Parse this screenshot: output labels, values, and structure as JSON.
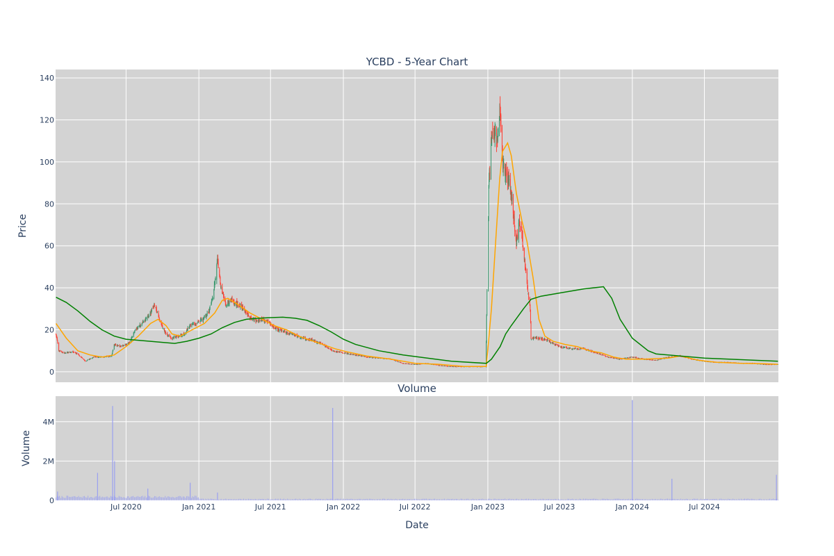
{
  "chart_data": [
    {
      "type": "candlestick",
      "title": "YCBD - 5-Year Chart",
      "ylabel": "Price",
      "ylim": [
        -5,
        144
      ],
      "yticks": [
        0,
        20,
        40,
        60,
        80,
        100,
        120,
        140
      ],
      "colors": {
        "up": "#3d9970",
        "down": "#ff4136",
        "ma_short": "#ffa500",
        "ma_long": "#008000"
      },
      "price_path": [
        [
          "2020-01-06",
          18
        ],
        [
          "2020-01-13",
          10
        ],
        [
          "2020-01-27",
          9
        ],
        [
          "2020-02-15",
          9.5
        ],
        [
          "2020-03-01",
          8.5
        ],
        [
          "2020-03-20",
          5
        ],
        [
          "2020-04-10",
          7
        ],
        [
          "2020-05-05",
          7
        ],
        [
          "2020-05-25",
          7.5
        ],
        [
          "2020-06-01",
          13
        ],
        [
          "2020-06-20",
          12
        ],
        [
          "2020-07-10",
          14
        ],
        [
          "2020-07-25",
          20
        ],
        [
          "2020-08-15",
          24
        ],
        [
          "2020-09-01",
          28
        ],
        [
          "2020-09-10",
          32
        ],
        [
          "2020-09-25",
          24
        ],
        [
          "2020-10-10",
          18
        ],
        [
          "2020-10-25",
          16
        ],
        [
          "2020-11-10",
          17
        ],
        [
          "2020-11-25",
          18
        ],
        [
          "2020-12-10",
          22
        ],
        [
          "2020-12-25",
          23
        ],
        [
          "2021-01-10",
          25
        ],
        [
          "2021-01-25",
          28
        ],
        [
          "2021-02-05",
          35
        ],
        [
          "2021-02-12",
          45
        ],
        [
          "2021-02-17",
          54
        ],
        [
          "2021-02-25",
          40
        ],
        [
          "2021-03-10",
          32
        ],
        [
          "2021-03-25",
          34
        ],
        [
          "2021-04-10",
          32
        ],
        [
          "2021-04-25",
          30
        ],
        [
          "2021-05-10",
          26
        ],
        [
          "2021-05-25",
          24
        ],
        [
          "2021-06-10",
          25
        ],
        [
          "2021-06-25",
          24
        ],
        [
          "2021-07-10",
          21
        ],
        [
          "2021-08-01",
          19
        ],
        [
          "2021-08-25",
          18
        ],
        [
          "2021-09-20",
          16
        ],
        [
          "2021-10-15",
          15
        ],
        [
          "2021-11-10",
          13
        ],
        [
          "2021-12-05",
          10
        ],
        [
          "2022-01-01",
          9
        ],
        [
          "2022-02-01",
          8
        ],
        [
          "2022-03-01",
          7
        ],
        [
          "2022-04-01",
          6.5
        ],
        [
          "2022-05-01",
          6
        ],
        [
          "2022-06-01",
          4
        ],
        [
          "2022-07-01",
          3.5
        ],
        [
          "2022-08-01",
          4
        ],
        [
          "2022-09-01",
          3
        ],
        [
          "2022-10-01",
          2.5
        ],
        [
          "2022-11-01",
          2.5
        ],
        [
          "2022-12-01",
          2.5
        ],
        [
          "2022-12-27",
          2.5
        ],
        [
          "2023-01-03",
          88
        ],
        [
          "2023-01-10",
          110
        ],
        [
          "2023-01-17",
          115
        ],
        [
          "2023-01-24",
          108
        ],
        [
          "2023-01-31",
          125
        ],
        [
          "2023-02-07",
          100
        ],
        [
          "2023-02-14",
          95
        ],
        [
          "2023-02-21",
          92
        ],
        [
          "2023-02-28",
          85
        ],
        [
          "2023-03-07",
          75
        ],
        [
          "2023-03-14",
          60
        ],
        [
          "2023-03-21",
          72
        ],
        [
          "2023-03-28",
          65
        ],
        [
          "2023-04-04",
          52
        ],
        [
          "2023-04-11",
          40
        ],
        [
          "2023-04-18",
          30
        ],
        [
          "2023-04-20",
          16
        ],
        [
          "2023-05-10",
          16
        ],
        [
          "2023-06-01",
          15
        ],
        [
          "2023-07-01",
          12
        ],
        [
          "2023-08-01",
          11
        ],
        [
          "2023-09-01",
          11
        ],
        [
          "2023-10-01",
          9
        ],
        [
          "2023-11-01",
          7
        ],
        [
          "2023-12-01",
          6
        ],
        [
          "2024-01-01",
          7
        ],
        [
          "2024-02-01",
          6
        ],
        [
          "2024-03-01",
          5.5
        ],
        [
          "2024-04-01",
          7
        ],
        [
          "2024-05-01",
          7.5
        ],
        [
          "2024-06-01",
          6
        ],
        [
          "2024-07-01",
          5
        ],
        [
          "2024-08-01",
          4.5
        ],
        [
          "2024-09-01",
          4.5
        ],
        [
          "2024-10-01",
          4
        ],
        [
          "2024-11-01",
          4
        ],
        [
          "2024-12-01",
          3.5
        ],
        [
          "2025-01-03",
          3.5
        ]
      ],
      "ma_short": [
        [
          "2020-01-06",
          23
        ],
        [
          "2020-02-01",
          16
        ],
        [
          "2020-03-01",
          10
        ],
        [
          "2020-04-01",
          8
        ],
        [
          "2020-05-01",
          7
        ],
        [
          "2020-06-01",
          8
        ],
        [
          "2020-07-01",
          12
        ],
        [
          "2020-08-01",
          17
        ],
        [
          "2020-09-01",
          23
        ],
        [
          "2020-09-20",
          25
        ],
        [
          "2020-10-10",
          22
        ],
        [
          "2020-10-25",
          18
        ],
        [
          "2020-11-15",
          17
        ],
        [
          "2020-12-15",
          20
        ],
        [
          "2021-01-15",
          23
        ],
        [
          "2021-02-10",
          28
        ],
        [
          "2021-03-01",
          34
        ],
        [
          "2021-03-15",
          35
        ],
        [
          "2021-04-10",
          32
        ],
        [
          "2021-05-10",
          28
        ],
        [
          "2021-06-10",
          25
        ],
        [
          "2021-07-10",
          22
        ],
        [
          "2021-08-10",
          20
        ],
        [
          "2021-09-10",
          17
        ],
        [
          "2021-10-10",
          15
        ],
        [
          "2021-11-10",
          13
        ],
        [
          "2021-12-10",
          11
        ],
        [
          "2022-01-10",
          9.5
        ],
        [
          "2022-03-01",
          7.5
        ],
        [
          "2022-05-01",
          6
        ],
        [
          "2022-07-01",
          4
        ],
        [
          "2022-09-01",
          3.5
        ],
        [
          "2022-11-01",
          2.5
        ],
        [
          "2022-12-28",
          2.5
        ],
        [
          "2023-01-10",
          30
        ],
        [
          "2023-01-20",
          60
        ],
        [
          "2023-01-31",
          92
        ],
        [
          "2023-02-07",
          105
        ],
        [
          "2023-02-20",
          109
        ],
        [
          "2023-03-01",
          103
        ],
        [
          "2023-03-14",
          85
        ],
        [
          "2023-03-28",
          72
        ],
        [
          "2023-04-10",
          62
        ],
        [
          "2023-04-25",
          45
        ],
        [
          "2023-05-10",
          25
        ],
        [
          "2023-05-25",
          17
        ],
        [
          "2023-06-15",
          14.5
        ],
        [
          "2023-07-15",
          13
        ],
        [
          "2023-08-15",
          12
        ],
        [
          "2023-09-15",
          10
        ],
        [
          "2023-10-15",
          9
        ],
        [
          "2023-11-15",
          7
        ],
        [
          "2023-12-15",
          6
        ],
        [
          "2024-02-01",
          6
        ],
        [
          "2024-04-01",
          6.5
        ],
        [
          "2024-05-01",
          7.5
        ],
        [
          "2024-06-15",
          5.5
        ],
        [
          "2024-08-01",
          4.5
        ],
        [
          "2024-10-01",
          4
        ],
        [
          "2024-12-01",
          3.8
        ],
        [
          "2025-01-03",
          3.5
        ]
      ],
      "ma_long": [
        [
          "2020-01-06",
          35.5
        ],
        [
          "2020-02-01",
          33
        ],
        [
          "2020-03-01",
          29
        ],
        [
          "2020-04-01",
          24
        ],
        [
          "2020-05-01",
          20
        ],
        [
          "2020-06-01",
          17
        ],
        [
          "2020-07-01",
          15.5
        ],
        [
          "2020-08-01",
          15
        ],
        [
          "2020-09-01",
          14.5
        ],
        [
          "2020-10-01",
          14
        ],
        [
          "2020-11-01",
          13.5
        ],
        [
          "2020-12-01",
          14.5
        ],
        [
          "2021-01-01",
          16
        ],
        [
          "2021-02-01",
          18
        ],
        [
          "2021-03-01",
          21
        ],
        [
          "2021-04-01",
          23.5
        ],
        [
          "2021-05-01",
          25
        ],
        [
          "2021-06-01",
          25.5
        ],
        [
          "2021-07-01",
          25.8
        ],
        [
          "2021-08-01",
          26
        ],
        [
          "2021-09-01",
          25.5
        ],
        [
          "2021-10-01",
          24.5
        ],
        [
          "2021-11-01",
          22
        ],
        [
          "2021-12-01",
          19
        ],
        [
          "2022-01-01",
          15.5
        ],
        [
          "2022-02-01",
          13
        ],
        [
          "2022-04-01",
          10
        ],
        [
          "2022-06-01",
          8
        ],
        [
          "2022-08-01",
          6.5
        ],
        [
          "2022-10-01",
          5
        ],
        [
          "2022-12-28",
          4
        ],
        [
          "2023-01-10",
          6
        ],
        [
          "2023-02-01",
          12
        ],
        [
          "2023-02-15",
          18
        ],
        [
          "2023-03-01",
          22
        ],
        [
          "2023-04-01",
          30
        ],
        [
          "2023-04-20",
          34.5
        ],
        [
          "2023-05-15",
          36
        ],
        [
          "2023-07-01",
          37.5
        ],
        [
          "2023-09-01",
          39.5
        ],
        [
          "2023-10-20",
          40.5
        ],
        [
          "2023-11-10",
          35
        ],
        [
          "2023-12-01",
          25
        ],
        [
          "2024-01-01",
          16
        ],
        [
          "2024-02-10",
          10
        ],
        [
          "2024-03-01",
          8.5
        ],
        [
          "2024-05-01",
          7.5
        ],
        [
          "2024-07-01",
          6.5
        ],
        [
          "2024-09-01",
          6
        ],
        [
          "2024-11-01",
          5.5
        ],
        [
          "2025-01-03",
          5
        ]
      ]
    },
    {
      "type": "bar",
      "title": "Volume",
      "xlabel": "Date",
      "ylabel": "Volume",
      "ylim": [
        0,
        5300000
      ],
      "yticks": [
        {
          "v": 0,
          "label": "0"
        },
        {
          "v": 2000000,
          "label": "2M"
        },
        {
          "v": 4000000,
          "label": "4M"
        }
      ],
      "xticks": [
        {
          "date": "2020-07-01",
          "label": "Jul 2020"
        },
        {
          "date": "2021-01-01",
          "label": "Jan 2021"
        },
        {
          "date": "2021-07-01",
          "label": "Jul 2021"
        },
        {
          "date": "2022-01-01",
          "label": "Jan 2022"
        },
        {
          "date": "2022-07-01",
          "label": "Jul 2022"
        },
        {
          "date": "2023-01-01",
          "label": "Jan 2023"
        },
        {
          "date": "2023-07-01",
          "label": "Jul 2023"
        },
        {
          "date": "2024-01-01",
          "label": "Jan 2024"
        },
        {
          "date": "2024-07-01",
          "label": "Jul 2024"
        }
      ],
      "color": "#9aa0f0",
      "spikes": [
        [
          "2020-01-10",
          450000
        ],
        [
          "2020-04-20",
          1400000
        ],
        [
          "2020-05-28",
          4800000
        ],
        [
          "2020-06-02",
          2000000
        ],
        [
          "2020-08-25",
          600000
        ],
        [
          "2020-12-10",
          900000
        ],
        [
          "2021-02-17",
          400000
        ],
        [
          "2021-12-05",
          4700000
        ],
        [
          "2024-01-01",
          5100000
        ],
        [
          "2024-04-10",
          1100000
        ],
        [
          "2024-12-30",
          1300000
        ]
      ]
    }
  ]
}
